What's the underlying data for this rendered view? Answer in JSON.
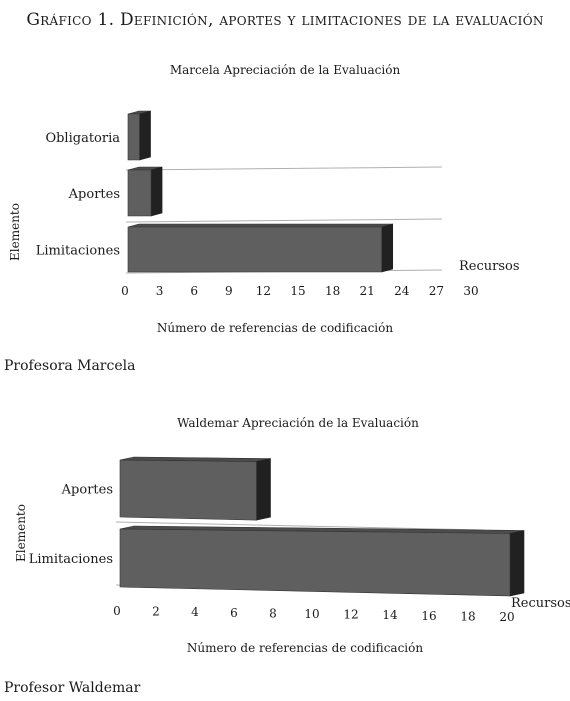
{
  "figure": {
    "title": "Gráfico 1. Definición, aportes y limitaciones de la evaluación"
  },
  "captions": [
    "Profesora Marcela",
    "Profesor Waldemar"
  ],
  "chart_data": [
    {
      "type": "bar",
      "orientation": "horizontal",
      "title": "Marcela Apreciación de la Evaluación",
      "ylabel": "Elemento",
      "xlabel": "Número de referencias de codificación",
      "depth_axis_label": "Recursos",
      "categories": [
        "Obligatoria",
        "Aportes",
        "Limitaciones"
      ],
      "values": [
        1,
        2,
        22
      ],
      "xlim": [
        0,
        30
      ],
      "xticks": [
        0,
        3,
        6,
        9,
        12,
        15,
        18,
        21,
        24,
        27,
        30
      ],
      "bar_color": "#5f5f5f",
      "grid": true
    },
    {
      "type": "bar",
      "orientation": "horizontal",
      "title": "Waldemar Apreciación de la Evaluación",
      "ylabel": "Elemento",
      "xlabel": "Número de referencias de codificación",
      "depth_axis_label": "Recursos",
      "categories": [
        "Aportes",
        "Limitaciones"
      ],
      "values": [
        7,
        20
      ],
      "xlim": [
        0,
        20
      ],
      "xticks": [
        0,
        2,
        4,
        6,
        8,
        10,
        12,
        14,
        16,
        18,
        20
      ],
      "bar_color": "#5f5f5f",
      "grid": true
    }
  ]
}
